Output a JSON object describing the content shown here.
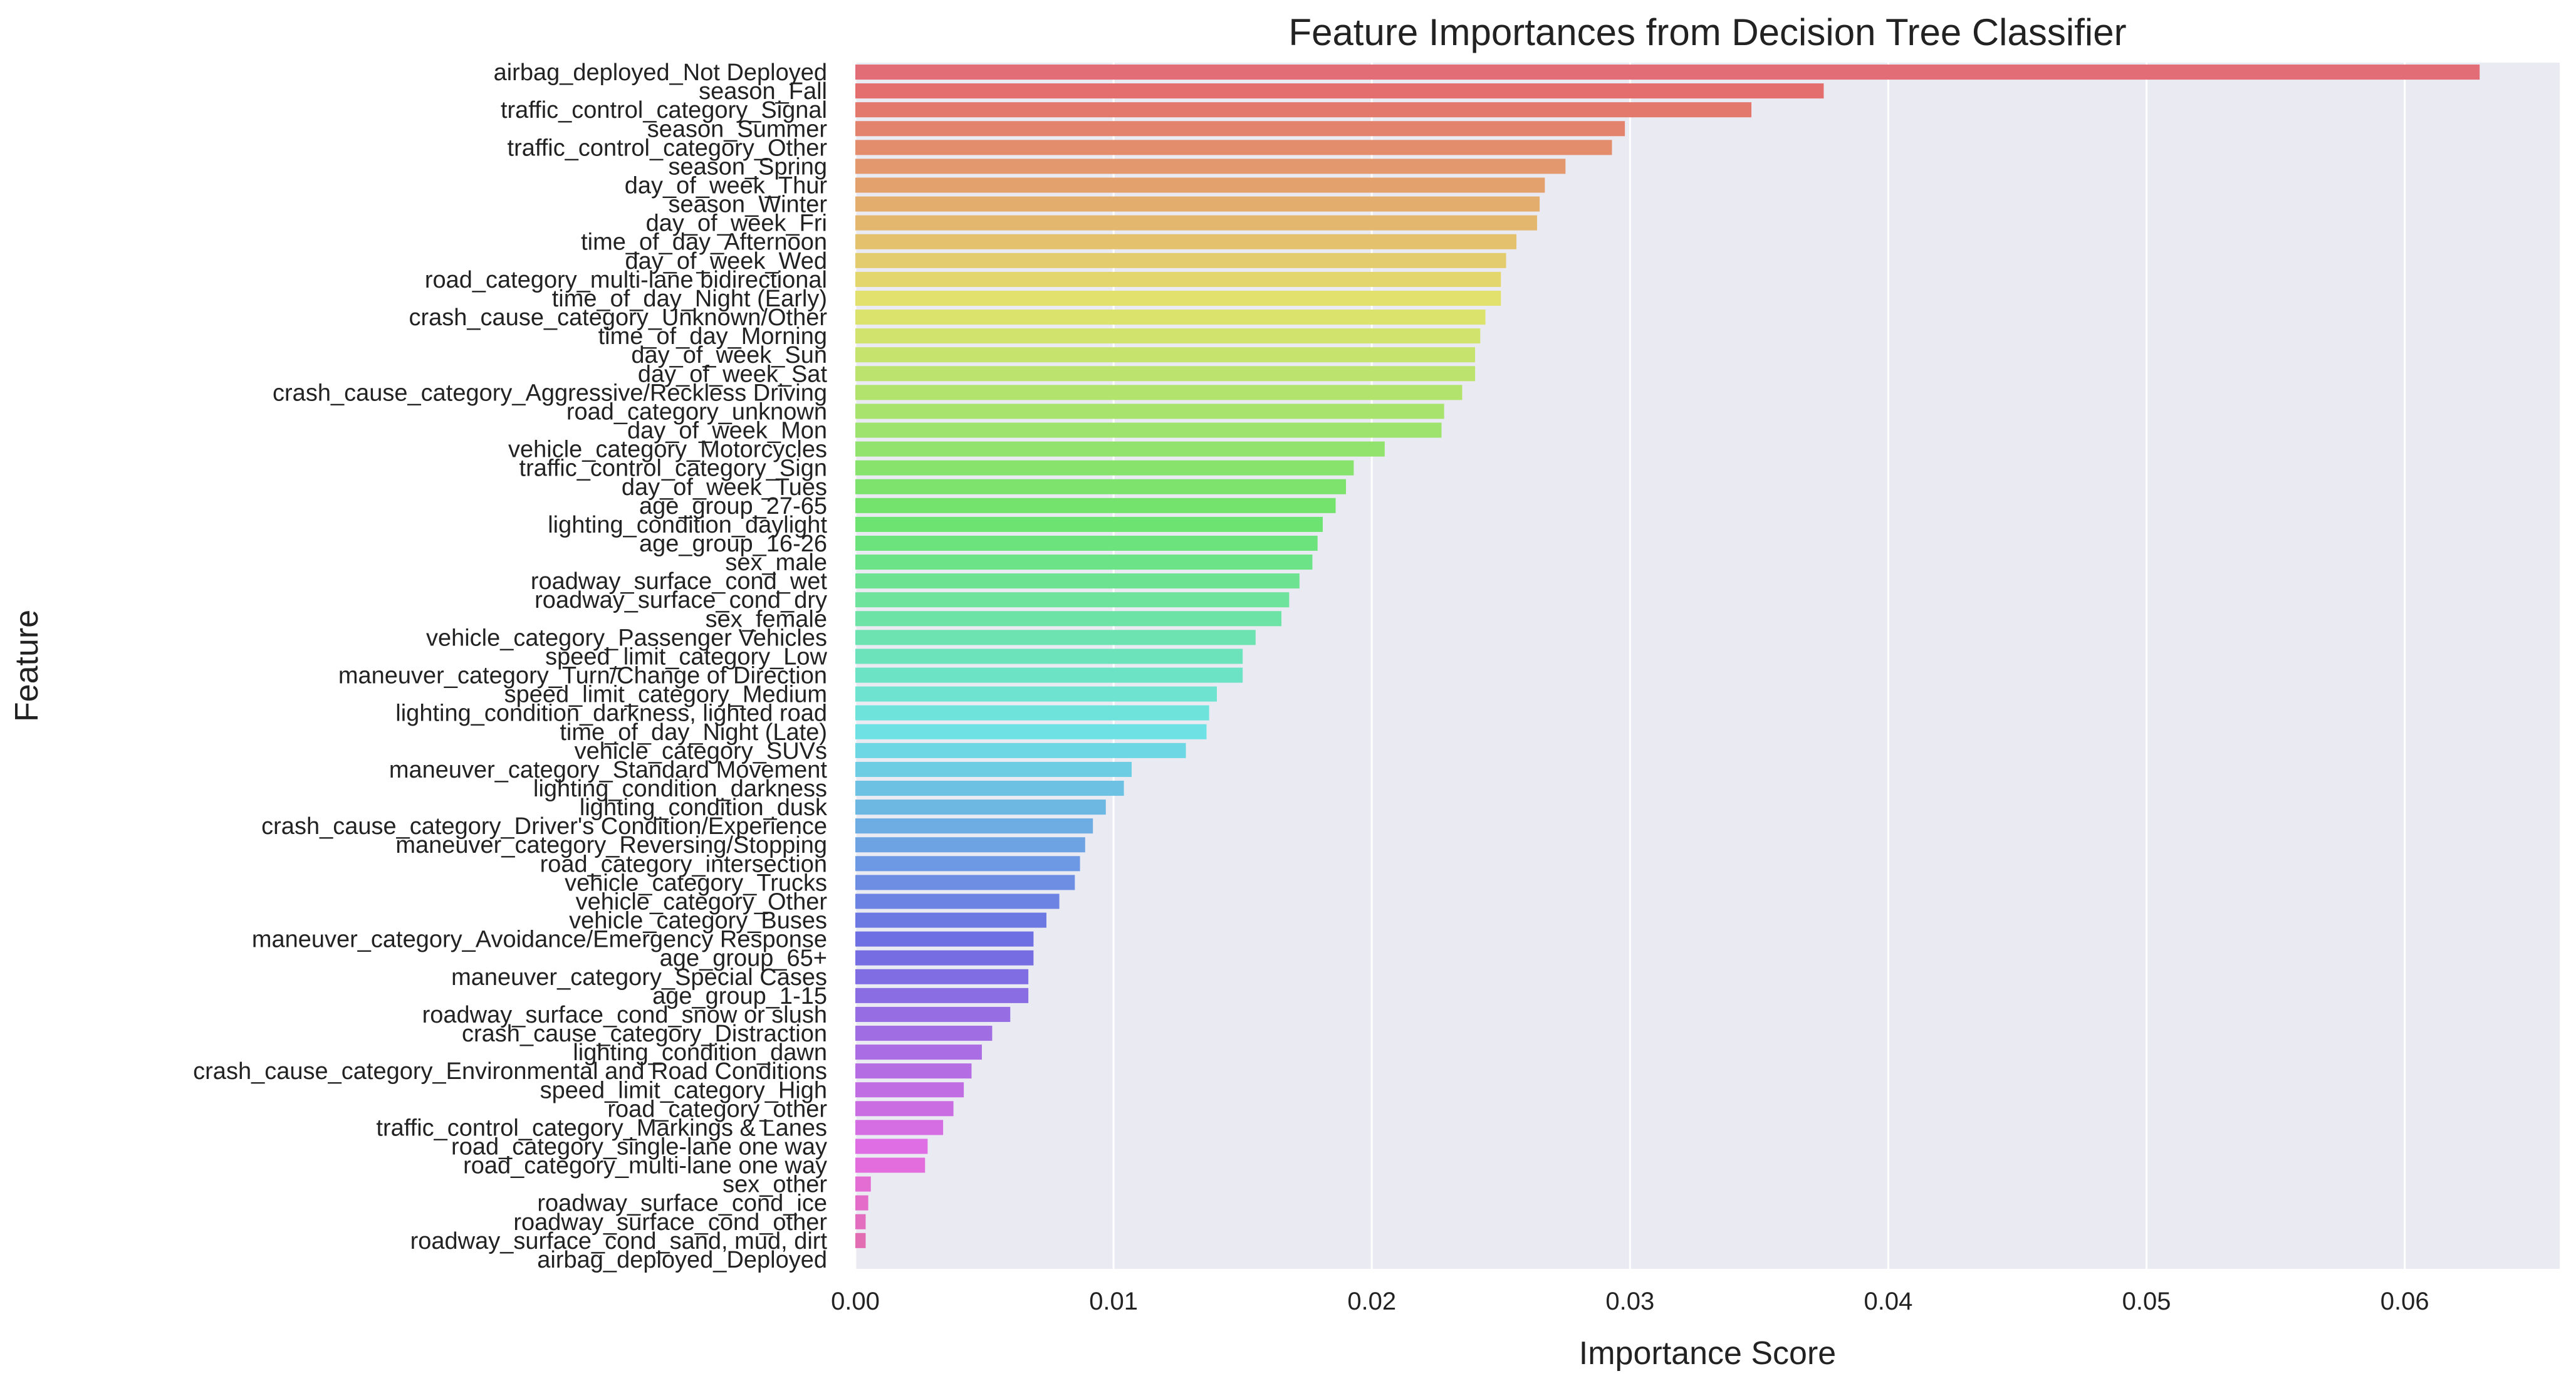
{
  "colors": {
    "plot_background": "#eaeaf2",
    "grid": "#ffffff",
    "text": "#222222"
  },
  "chart_data": {
    "type": "bar",
    "orientation": "horizontal",
    "title": "Feature Importances from Decision Tree Classifier",
    "xlabel": "Importance Score",
    "ylabel": "Feature",
    "xlim": [
      0.0,
      0.066
    ],
    "xticks": [
      "0.00",
      "0.01",
      "0.02",
      "0.03",
      "0.04",
      "0.05",
      "0.06"
    ],
    "grid": true,
    "palette": "husl",
    "categories": [
      "airbag_deployed_Not Deployed",
      "season_Fall",
      "traffic_control_category_Signal",
      "season_Summer",
      "traffic_control_category_Other",
      "season_Spring",
      "day_of_week_Thur",
      "season_Winter",
      "day_of_week_Fri",
      "time_of_day_Afternoon",
      "day_of_week_Wed",
      "road_category_multi-lane bidirectional",
      "time_of_day_Night (Early)",
      "crash_cause_category_Unknown/Other",
      "time_of_day_Morning",
      "day_of_week_Sun",
      "day_of_week_Sat",
      "crash_cause_category_Aggressive/Reckless Driving",
      "road_category_unknown",
      "day_of_week_Mon",
      "vehicle_category_Motorcycles",
      "traffic_control_category_Sign",
      "day_of_week_Tues",
      "age_group_27-65",
      "lighting_condition_daylight",
      "age_group_16-26",
      "sex_male",
      "roadway_surface_cond_wet",
      "roadway_surface_cond_dry",
      "sex_female",
      "vehicle_category_Passenger Vehicles",
      "speed_limit_category_Low",
      "maneuver_category_Turn/Change of Direction",
      "speed_limit_category_Medium",
      "lighting_condition_darkness, lighted road",
      "time_of_day_Night (Late)",
      "vehicle_category_SUVs",
      "maneuver_category_Standard Movement",
      "lighting_condition_darkness",
      "lighting_condition_dusk",
      "crash_cause_category_Driver's Condition/Experience",
      "maneuver_category_Reversing/Stopping",
      "road_category_intersection",
      "vehicle_category_Trucks",
      "vehicle_category_Other",
      "vehicle_category_Buses",
      "maneuver_category_Avoidance/Emergency Response",
      "age_group_65+",
      "maneuver_category_Special Cases",
      "age_group_1-15",
      "roadway_surface_cond_snow or slush",
      "crash_cause_category_Distraction",
      "lighting_condition_dawn",
      "crash_cause_category_Environmental and Road Conditions",
      "speed_limit_category_High",
      "road_category_other",
      "traffic_control_category_Markings & Lanes",
      "road_category_single-lane one way",
      "road_category_multi-lane one way",
      "sex_other",
      "roadway_surface_cond_ice",
      "roadway_surface_cond_other",
      "roadway_surface_cond_sand, mud, dirt",
      "airbag_deployed_Deployed"
    ],
    "values": [
      0.0629,
      0.0375,
      0.0347,
      0.0298,
      0.0293,
      0.0275,
      0.0267,
      0.0265,
      0.0264,
      0.0256,
      0.0252,
      0.025,
      0.025,
      0.0244,
      0.0242,
      0.024,
      0.024,
      0.0235,
      0.0228,
      0.0227,
      0.0205,
      0.0193,
      0.019,
      0.0186,
      0.0181,
      0.0179,
      0.0177,
      0.0172,
      0.0168,
      0.0165,
      0.0155,
      0.015,
      0.015,
      0.014,
      0.0137,
      0.0136,
      0.0128,
      0.0107,
      0.0104,
      0.0097,
      0.0092,
      0.0089,
      0.0087,
      0.0085,
      0.0079,
      0.0074,
      0.0069,
      0.0069,
      0.0067,
      0.0067,
      0.006,
      0.0053,
      0.0049,
      0.0045,
      0.0042,
      0.0038,
      0.0034,
      0.0028,
      0.0027,
      0.0006,
      0.0005,
      0.0004,
      0.0004,
      0.0
    ]
  }
}
